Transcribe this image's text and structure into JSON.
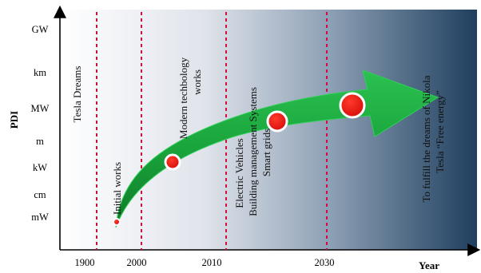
{
  "y_axis": {
    "title": "PDI",
    "levels": [
      "GW",
      "km",
      "MW",
      "m",
      "kW",
      "cm",
      "mW"
    ]
  },
  "x_axis": {
    "title": "Year",
    "ticks": [
      "1900",
      "2000",
      "2010",
      "2030"
    ]
  },
  "annotations": {
    "tesla_dreams": "Tesla Dreams",
    "initial_works": "Initial works",
    "modern_line1": "Modern techbology",
    "modern_line2": "works",
    "ev_line1": "Electric Vehicles",
    "ev_line2": "Building management Systems",
    "ev_line3": "Smart grids",
    "future_line1": "To fulfill the dreams of Nikola",
    "future_line2": "Tesla “Free energy”"
  },
  "colors": {
    "background_light": "#ffffff",
    "background_dark": "#1f3f5e",
    "arrow_green": "#19a03a",
    "marker_red": "#e01010",
    "divider_red": "#d0103a"
  }
}
